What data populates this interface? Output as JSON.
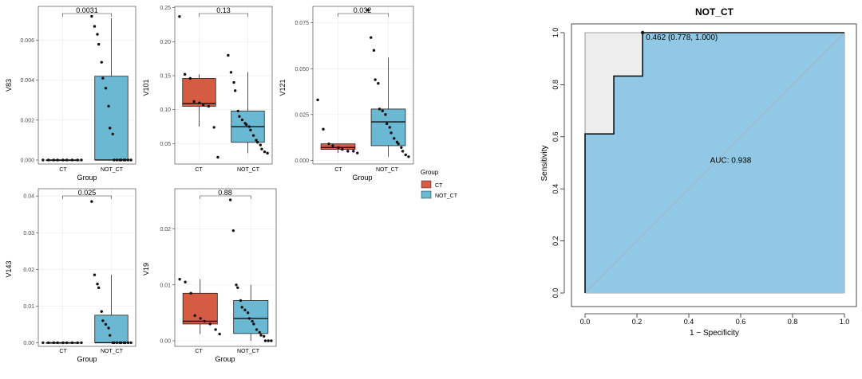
{
  "chart_data": [
    {
      "type": "boxplot",
      "xlabel": "Group",
      "ylabel": "V83",
      "categories": [
        "CT",
        "NOT_CT"
      ],
      "ylim": [
        -0.0002,
        0.0077
      ],
      "yticks": [
        0.0,
        0.002,
        0.004,
        0.006
      ],
      "ytick_labels": [
        "0.000",
        "0.002",
        "0.004",
        "0.006"
      ],
      "pvalue_label": "0.0031",
      "series": [
        {
          "name": "CT",
          "color": "#d75b43",
          "box": {
            "q1": 0,
            "median": 0,
            "q3": 0,
            "whisker_low": 0,
            "whisker_high": 0
          },
          "points": [
            0,
            0,
            0,
            0,
            0,
            0,
            0,
            0,
            0
          ]
        },
        {
          "name": "NOT_CT",
          "color": "#6bb8d3",
          "box": {
            "q1": 0,
            "median": 0,
            "q3": 0.0042,
            "whisker_low": 0,
            "whisker_high": 0.0071
          },
          "points": [
            0.0072,
            0.0067,
            0.0063,
            0.0058,
            0.0049,
            0.0041,
            0.0036,
            0.0027,
            0.0016,
            0.0013,
            0,
            0,
            0,
            0,
            0,
            0,
            0,
            0
          ]
        }
      ]
    },
    {
      "type": "boxplot",
      "xlabel": "",
      "ylabel": "V101",
      "categories": [
        "CT",
        "NOT_CT"
      ],
      "ylim": [
        0.02,
        0.252
      ],
      "yticks": [
        0.05,
        0.1,
        0.15,
        0.2,
        0.25
      ],
      "ytick_labels": [
        "0.05",
        "0.10",
        "0.15",
        "0.20",
        "0.25"
      ],
      "pvalue_label": "0.13",
      "series": [
        {
          "name": "CT",
          "color": "#d75b43",
          "box": {
            "q1": 0.105,
            "median": 0.109,
            "q3": 0.146,
            "whisker_low": 0.075,
            "whisker_high": 0.152
          },
          "points": [
            0.237,
            0.152,
            0.146,
            0.112,
            0.11,
            0.107,
            0.105,
            0.074,
            0.03
          ]
        },
        {
          "name": "NOT_CT",
          "color": "#6bb8d3",
          "box": {
            "q1": 0.052,
            "median": 0.075,
            "q3": 0.098,
            "whisker_low": 0.036,
            "whisker_high": 0.155
          },
          "points": [
            0.18,
            0.155,
            0.14,
            0.128,
            0.098,
            0.09,
            0.085,
            0.08,
            0.078,
            0.075,
            0.07,
            0.062,
            0.055,
            0.052,
            0.048,
            0.042,
            0.038,
            0.036
          ]
        }
      ]
    },
    {
      "type": "boxplot",
      "xlabel": "Group",
      "ylabel": "V121",
      "categories": [
        "CT",
        "NOT_CT"
      ],
      "ylim": [
        -0.002,
        0.084
      ],
      "yticks": [
        0.0,
        0.025,
        0.05,
        0.075
      ],
      "ytick_labels": [
        "0.000",
        "0.025",
        "0.050",
        "0.075"
      ],
      "pvalue_label": "0.032",
      "series": [
        {
          "name": "CT",
          "color": "#d75b43",
          "box": {
            "q1": 0.006,
            "median": 0.007,
            "q3": 0.009,
            "whisker_low": 0.004,
            "whisker_high": 0.009
          },
          "points": [
            0.033,
            0.017,
            0.009,
            0.008,
            0.007,
            0.006,
            0.005,
            0.005,
            0.004
          ]
        },
        {
          "name": "NOT_CT",
          "color": "#6bb8d3",
          "box": {
            "q1": 0.008,
            "median": 0.021,
            "q3": 0.028,
            "whisker_low": 0.002,
            "whisker_high": 0.056
          },
          "points": [
            0.082,
            0.067,
            0.06,
            0.044,
            0.042,
            0.028,
            0.027,
            0.025,
            0.02,
            0.018,
            0.015,
            0.012,
            0.01,
            0.009,
            0.007,
            0.005,
            0.003,
            0.002
          ]
        }
      ]
    },
    {
      "type": "boxplot",
      "xlabel": "Group",
      "ylabel": "V143",
      "categories": [
        "CT",
        "NOT_CT"
      ],
      "ylim": [
        -0.001,
        0.042
      ],
      "yticks": [
        0.0,
        0.01,
        0.02,
        0.03,
        0.04
      ],
      "ytick_labels": [
        "0.00",
        "0.01",
        "0.02",
        "0.03",
        "0.04"
      ],
      "pvalue_label": "0.025",
      "series": [
        {
          "name": "CT",
          "color": "#d75b43",
          "box": {
            "q1": 0,
            "median": 0,
            "q3": 0,
            "whisker_low": 0,
            "whisker_high": 0
          },
          "points": [
            0,
            0,
            0,
            0,
            0,
            0,
            0,
            0,
            0
          ]
        },
        {
          "name": "NOT_CT",
          "color": "#6bb8d3",
          "box": {
            "q1": 0,
            "median": 0,
            "q3": 0.0075,
            "whisker_low": 0,
            "whisker_high": 0.0185
          },
          "points": [
            0.0385,
            0.0185,
            0.016,
            0.015,
            0.0085,
            0.006,
            0.005,
            0.004,
            0.002,
            0,
            0,
            0,
            0,
            0,
            0,
            0,
            0,
            0
          ]
        }
      ]
    },
    {
      "type": "boxplot",
      "xlabel": "Group",
      "ylabel": "V19",
      "categories": [
        "CT",
        "NOT_CT"
      ],
      "ylim": [
        -0.001,
        0.0272
      ],
      "yticks": [
        0.0,
        0.01,
        0.02
      ],
      "ytick_labels": [
        "0.00",
        "0.01",
        "0.02"
      ],
      "pvalue_label": "0.88",
      "series": [
        {
          "name": "CT",
          "color": "#d75b43",
          "box": {
            "q1": 0.003,
            "median": 0.0035,
            "q3": 0.0085,
            "whisker_low": 0.0012,
            "whisker_high": 0.011
          },
          "points": [
            0.011,
            0.0105,
            0.0085,
            0.0045,
            0.004,
            0.0035,
            0.003,
            0.002,
            0.0012
          ]
        },
        {
          "name": "NOT_CT",
          "color": "#6bb8d3",
          "box": {
            "q1": 0.0013,
            "median": 0.004,
            "q3": 0.0072,
            "whisker_low": 0,
            "whisker_high": 0.01
          },
          "points": [
            0.0252,
            0.0197,
            0.01,
            0.0095,
            0.0072,
            0.006,
            0.0055,
            0.005,
            0.004,
            0.0035,
            0.003,
            0.002,
            0.0015,
            0.001,
            0.0008,
            0,
            0,
            0
          ]
        }
      ]
    },
    {
      "type": "roc",
      "title": "NOT_CT",
      "xlabel": "1 − Specificity",
      "ylabel": "Sensitivity",
      "xlim": [
        0,
        1
      ],
      "ylim": [
        0,
        1
      ],
      "xticks": [
        0.0,
        0.2,
        0.4,
        0.6,
        0.8,
        1.0
      ],
      "xtick_labels": [
        "0.0",
        "0.2",
        "0.4",
        "0.6",
        "0.8",
        "1.0"
      ],
      "yticks": [
        0.0,
        0.2,
        0.4,
        0.6,
        0.8,
        1.0
      ],
      "ytick_labels": [
        "0.0",
        "0.2",
        "0.4",
        "0.6",
        "0.8",
        "1.0"
      ],
      "curve": {
        "x": [
          0,
          0,
          0.111,
          0.111,
          0.222,
          0.222,
          1.0
        ],
        "y": [
          0,
          0.611,
          0.611,
          0.833,
          0.833,
          1.0,
          1.0
        ]
      },
      "ci_outer": {
        "x": [
          0,
          0,
          1
        ],
        "y": [
          0,
          1,
          1
        ]
      },
      "threshold_point": {
        "x": 0.222,
        "y": 1.0,
        "label": "0.462 (0.778, 1.000)"
      },
      "auc_label": "AUC: 0.938",
      "auc_position": {
        "x": 0.5,
        "y": 0.5
      },
      "fill_color": "#90c8e6",
      "ci_color": "#ededed"
    }
  ],
  "legend": {
    "title": "Group",
    "items": [
      {
        "name": "CT",
        "color": "#d75b43"
      },
      {
        "name": "NOT_CT",
        "color": "#6bb8d3"
      }
    ]
  }
}
